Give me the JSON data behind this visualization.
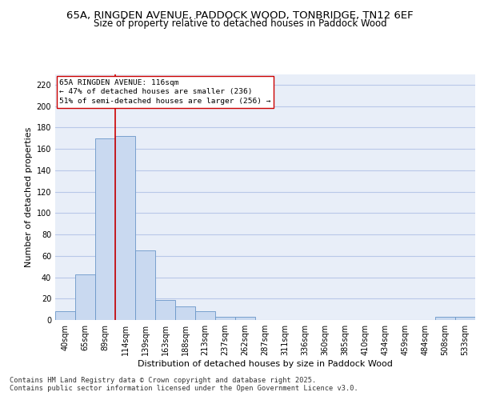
{
  "title_line1": "65A, RINGDEN AVENUE, PADDOCK WOOD, TONBRIDGE, TN12 6EF",
  "title_line2": "Size of property relative to detached houses in Paddock Wood",
  "xlabel": "Distribution of detached houses by size in Paddock Wood",
  "ylabel": "Number of detached properties",
  "categories": [
    "40sqm",
    "65sqm",
    "89sqm",
    "114sqm",
    "139sqm",
    "163sqm",
    "188sqm",
    "213sqm",
    "237sqm",
    "262sqm",
    "287sqm",
    "311sqm",
    "336sqm",
    "360sqm",
    "385sqm",
    "410sqm",
    "434sqm",
    "459sqm",
    "484sqm",
    "508sqm",
    "533sqm"
  ],
  "values": [
    8,
    43,
    170,
    172,
    65,
    19,
    13,
    8,
    3,
    3,
    0,
    0,
    0,
    0,
    0,
    0,
    0,
    0,
    0,
    3,
    3
  ],
  "bar_color": "#c9d9f0",
  "bar_edge_color": "#6a96c8",
  "grid_color": "#b8c8e8",
  "background_color": "#e8eef8",
  "vline_color": "#cc0000",
  "vline_bar_index": 3,
  "annotation_text": "65A RINGDEN AVENUE: 116sqm\n← 47% of detached houses are smaller (236)\n51% of semi-detached houses are larger (256) →",
  "annotation_box_color": "#cc0000",
  "ylim": [
    0,
    230
  ],
  "yticks": [
    0,
    20,
    40,
    60,
    80,
    100,
    120,
    140,
    160,
    180,
    200,
    220
  ],
  "footer": "Contains HM Land Registry data © Crown copyright and database right 2025.\nContains public sector information licensed under the Open Government Licence v3.0.",
  "title_fontsize": 9.5,
  "subtitle_fontsize": 8.5,
  "axis_label_fontsize": 8,
  "tick_fontsize": 7,
  "annotation_fontsize": 6.8,
  "footer_fontsize": 6.2
}
